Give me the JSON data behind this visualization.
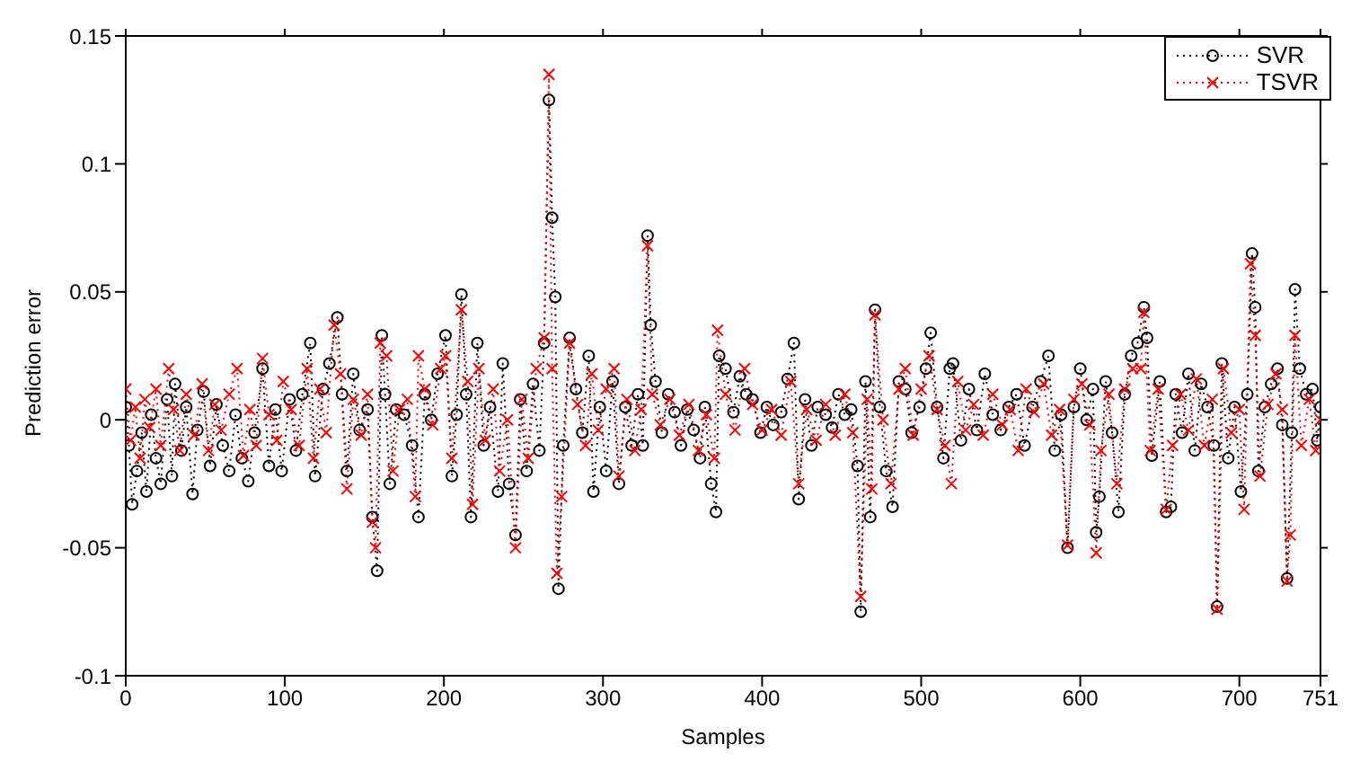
{
  "chart_data": {
    "type": "line",
    "xlabel": "Samples",
    "ylabel": "Prediction error",
    "xlim": [
      0,
      751
    ],
    "xticks": [
      0,
      100,
      200,
      300,
      400,
      500,
      600,
      700,
      751
    ],
    "ylim": [
      -0.1,
      0.15
    ],
    "yticks": [
      -0.1,
      -0.05,
      0,
      0.05,
      0.1,
      0.15
    ],
    "grid": false,
    "legend": "top right",
    "line_style": "dotted",
    "series": [
      {
        "name": "SVR",
        "color": "#000000",
        "marker": "circle",
        "x": [
          0,
          2,
          4,
          7,
          10,
          13,
          16,
          19,
          22,
          26,
          29,
          31,
          35,
          38,
          42,
          45,
          49,
          53,
          57,
          61,
          65,
          69,
          73,
          77,
          81,
          86,
          90,
          94,
          98,
          103,
          107,
          111,
          116,
          119,
          124,
          128,
          133,
          136,
          139,
          143,
          147,
          152,
          155,
          158,
          161,
          163,
          166,
          170,
          175,
          180,
          184,
          188,
          192,
          196,
          201,
          205,
          208,
          211,
          214,
          217,
          221,
          225,
          229,
          234,
          237,
          241,
          245,
          248,
          252,
          256,
          260,
          263,
          266,
          268,
          270,
          272,
          275,
          279,
          283,
          287,
          291,
          294,
          298,
          302,
          306,
          310,
          314,
          318,
          322,
          325,
          328,
          330,
          333,
          337,
          341,
          345,
          349,
          353,
          357,
          361,
          364,
          368,
          371,
          373,
          377,
          382,
          386,
          390,
          394,
          399,
          403,
          407,
          412,
          416,
          420,
          423,
          427,
          431,
          435,
          440,
          444,
          448,
          452,
          456,
          460,
          462,
          465,
          468,
          471,
          474,
          478,
          482,
          486,
          490,
          494,
          499,
          503,
          506,
          510,
          514,
          518,
          520,
          525,
          530,
          535,
          540,
          545,
          550,
          555,
          560,
          565,
          570,
          575,
          580,
          584,
          588,
          592,
          596,
          600,
          604,
          608,
          610,
          612,
          616,
          620,
          624,
          628,
          632,
          636,
          640,
          642,
          645,
          650,
          654,
          657,
          660,
          664,
          668,
          672,
          676,
          680,
          684,
          686,
          689,
          693,
          697,
          701,
          705,
          708,
          710,
          712,
          716,
          720,
          724,
          727,
          730,
          733,
          735,
          738,
          742,
          746,
          749,
          751
        ],
        "values": [
          0.005,
          -0.01,
          -0.033,
          -0.02,
          -0.005,
          -0.028,
          0.002,
          -0.015,
          -0.025,
          0.008,
          -0.022,
          0.014,
          -0.012,
          0.005,
          -0.029,
          -0.004,
          0.011,
          -0.018,
          0.006,
          -0.01,
          -0.02,
          0.002,
          -0.015,
          -0.024,
          -0.005,
          0.02,
          -0.018,
          0.004,
          -0.02,
          0.008,
          -0.012,
          0.01,
          0.03,
          -0.022,
          0.012,
          0.022,
          0.04,
          0.01,
          -0.02,
          0.018,
          -0.004,
          0.004,
          -0.038,
          -0.059,
          0.033,
          0.01,
          -0.025,
          0.004,
          0.002,
          -0.01,
          -0.038,
          0.01,
          0.0,
          0.018,
          0.033,
          -0.022,
          0.002,
          0.049,
          0.01,
          -0.038,
          0.03,
          -0.01,
          0.005,
          -0.028,
          0.022,
          -0.025,
          -0.045,
          0.008,
          -0.02,
          0.014,
          -0.012,
          0.03,
          0.125,
          0.079,
          0.048,
          -0.066,
          -0.01,
          0.032,
          0.012,
          -0.005,
          0.025,
          -0.028,
          0.005,
          -0.02,
          0.015,
          -0.025,
          0.005,
          -0.01,
          0.01,
          -0.01,
          0.072,
          0.037,
          0.015,
          -0.005,
          0.01,
          0.003,
          -0.01,
          0.004,
          -0.004,
          -0.015,
          0.005,
          -0.025,
          -0.036,
          0.025,
          0.02,
          0.003,
          0.017,
          0.01,
          0.008,
          -0.005,
          0.005,
          -0.002,
          0.003,
          0.016,
          0.03,
          -0.031,
          0.008,
          -0.01,
          0.005,
          0.002,
          -0.003,
          0.01,
          0.002,
          0.004,
          -0.018,
          -0.075,
          0.015,
          -0.038,
          0.043,
          0.005,
          -0.02,
          -0.034,
          0.015,
          0.012,
          -0.005,
          0.005,
          0.02,
          0.034,
          0.005,
          -0.015,
          0.02,
          0.022,
          -0.008,
          0.012,
          -0.004,
          0.018,
          0.002,
          -0.004,
          0.005,
          0.01,
          -0.01,
          0.005,
          0.015,
          0.025,
          -0.012,
          0.002,
          -0.05,
          0.005,
          0.02,
          0.0,
          0.012,
          -0.044,
          -0.03,
          0.015,
          -0.005,
          -0.036,
          0.01,
          0.025,
          0.03,
          0.044,
          0.032,
          -0.014,
          0.015,
          -0.036,
          -0.034,
          0.01,
          -0.005,
          0.018,
          -0.012,
          0.014,
          0.005,
          -0.01,
          -0.073,
          0.022,
          -0.015,
          0.005,
          -0.028,
          0.01,
          0.065,
          0.044,
          -0.02,
          0.005,
          0.014,
          0.02,
          -0.002,
          -0.062,
          -0.005,
          0.051,
          0.02,
          0.01,
          0.012,
          -0.008,
          0.005
        ]
      },
      {
        "name": "TSVR",
        "color": "#ff0000",
        "marker": "cross",
        "x": [
          0,
          3,
          6,
          9,
          12,
          15,
          19,
          22,
          27,
          30,
          34,
          38,
          43,
          48,
          52,
          56,
          60,
          65,
          70,
          74,
          78,
          82,
          86,
          90,
          95,
          99,
          104,
          109,
          114,
          118,
          122,
          126,
          131,
          135,
          139,
          143,
          148,
          152,
          155,
          157,
          160,
          164,
          168,
          172,
          177,
          182,
          184,
          188,
          193,
          198,
          201,
          205,
          211,
          215,
          218,
          222,
          226,
          231,
          235,
          240,
          245,
          249,
          253,
          258,
          263,
          266,
          268,
          271,
          274,
          279,
          284,
          289,
          293,
          297,
          302,
          307,
          310,
          315,
          320,
          324,
          328,
          331,
          336,
          342,
          348,
          354,
          360,
          365,
          370,
          372,
          377,
          383,
          389,
          394,
          400,
          406,
          412,
          418,
          423,
          428,
          434,
          440,
          446,
          452,
          457,
          462,
          466,
          469,
          471,
          476,
          481,
          486,
          490,
          495,
          500,
          505,
          510,
          515,
          519,
          523,
          528,
          533,
          539,
          545,
          551,
          556,
          561,
          566,
          571,
          577,
          582,
          587,
          592,
          596,
          601,
          606,
          610,
          613,
          618,
          623,
          628,
          633,
          638,
          640,
          644,
          649,
          654,
          658,
          663,
          668,
          673,
          678,
          683,
          686,
          690,
          695,
          700,
          703,
          707,
          710,
          713,
          718,
          723,
          727,
          730,
          732,
          735,
          739,
          744,
          748,
          751
        ],
        "values": [
          0.012,
          -0.008,
          0.005,
          -0.015,
          0.008,
          -0.003,
          0.012,
          -0.01,
          0.02,
          0.004,
          -0.012,
          0.01,
          -0.006,
          0.014,
          -0.012,
          0.006,
          -0.004,
          0.01,
          0.02,
          -0.014,
          0.004,
          -0.01,
          0.024,
          0.002,
          -0.008,
          0.015,
          0.004,
          -0.01,
          0.02,
          -0.015,
          0.012,
          -0.005,
          0.037,
          0.018,
          -0.027,
          0.008,
          -0.006,
          0.01,
          -0.04,
          -0.05,
          0.03,
          0.025,
          -0.02,
          0.004,
          0.008,
          -0.03,
          0.025,
          0.012,
          -0.002,
          0.02,
          0.025,
          -0.015,
          0.043,
          0.015,
          -0.033,
          0.02,
          -0.008,
          0.012,
          -0.02,
          0.0,
          -0.05,
          0.008,
          -0.015,
          0.02,
          0.032,
          0.135,
          0.02,
          -0.06,
          -0.03,
          0.03,
          0.006,
          -0.01,
          0.018,
          -0.004,
          0.012,
          0.02,
          -0.022,
          0.008,
          -0.012,
          0.004,
          0.068,
          0.01,
          -0.002,
          0.008,
          -0.006,
          0.006,
          -0.012,
          0.002,
          -0.015,
          0.035,
          0.01,
          -0.004,
          0.02,
          0.006,
          -0.004,
          0.004,
          -0.006,
          0.015,
          -0.025,
          0.004,
          -0.008,
          0.006,
          -0.006,
          0.01,
          -0.005,
          -0.069,
          0.008,
          -0.027,
          0.041,
          0.0,
          -0.025,
          0.012,
          0.02,
          -0.006,
          0.012,
          0.025,
          0.004,
          -0.01,
          -0.025,
          0.015,
          -0.004,
          0.006,
          -0.006,
          0.01,
          -0.002,
          0.004,
          -0.012,
          0.012,
          0.003,
          0.014,
          -0.006,
          0.004,
          -0.049,
          0.008,
          0.014,
          -0.002,
          -0.052,
          -0.012,
          0.01,
          -0.025,
          0.012,
          0.02,
          0.02,
          0.042,
          -0.012,
          0.012,
          -0.035,
          -0.01,
          0.01,
          -0.004,
          0.016,
          -0.01,
          0.008,
          -0.074,
          0.02,
          -0.005,
          0.004,
          -0.035,
          0.061,
          0.033,
          -0.022,
          0.006,
          0.018,
          0.004,
          -0.063,
          -0.045,
          0.033,
          -0.01,
          0.008,
          -0.012,
          0.0
        ]
      }
    ]
  }
}
